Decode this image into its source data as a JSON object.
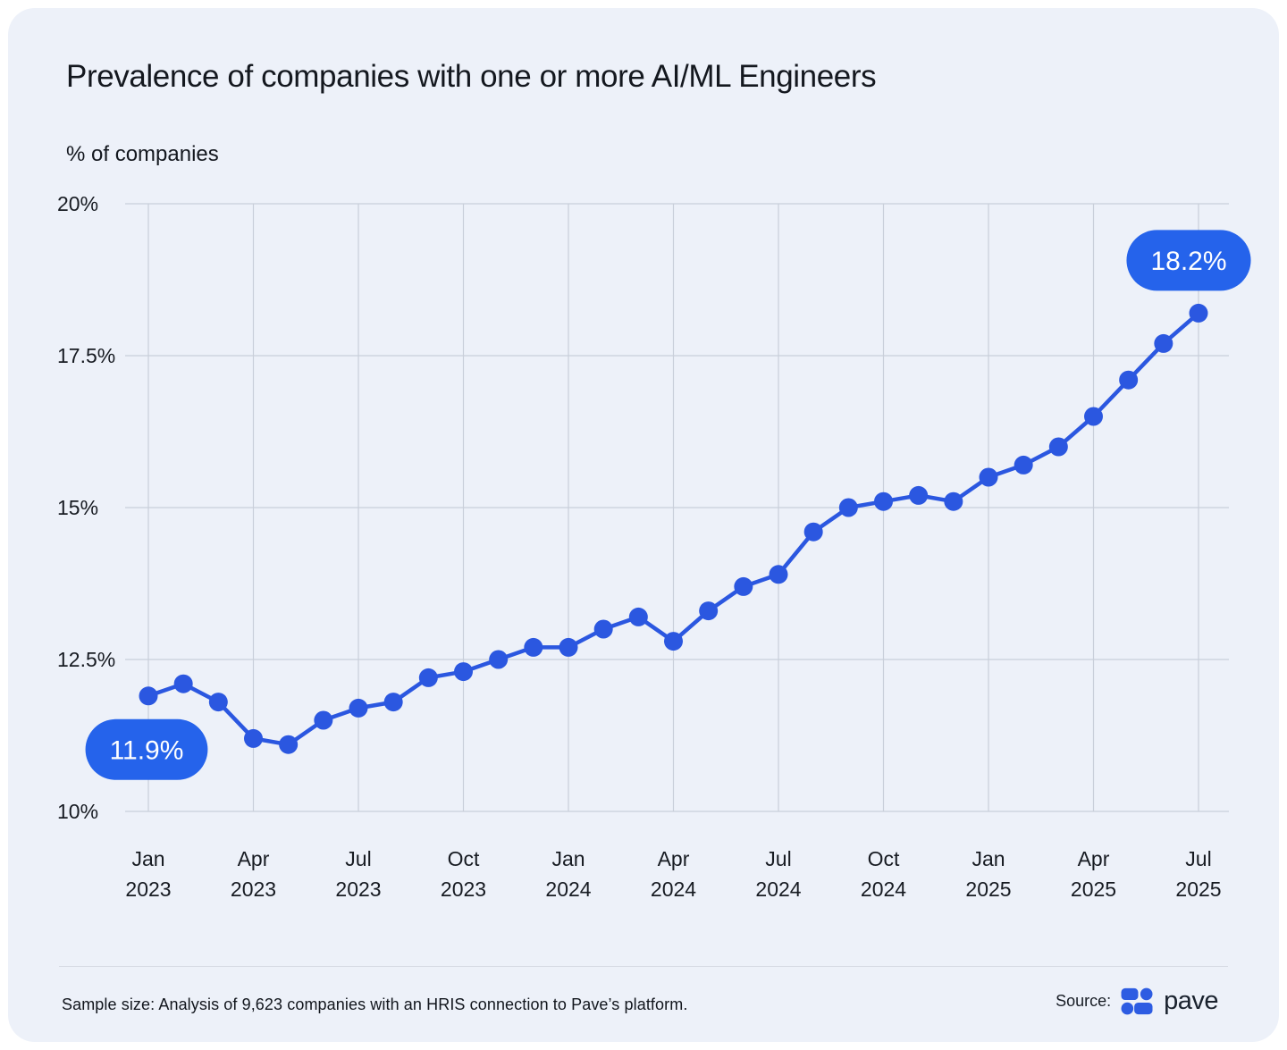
{
  "header": {
    "title": "Prevalence of companies with one or more AI/ML Engineers",
    "y_axis_title": "% of companies"
  },
  "footer": {
    "sample_note": "Sample size: Analysis of 9,623 companies with an HRIS connection to Pave’s platform.",
    "source_label": "Source:",
    "brand": "pave"
  },
  "chart_data": {
    "type": "line",
    "title": "Prevalence of companies with one or more AI/ML Engineers",
    "ylabel": "% of companies",
    "unit": "%",
    "ylim": [
      10,
      20
    ],
    "grid": "both",
    "legend": "none",
    "y_ticks": [
      {
        "value": 10,
        "label": "10%"
      },
      {
        "value": 12.5,
        "label": "12.5%"
      },
      {
        "value": 15,
        "label": "15%"
      },
      {
        "value": 17.5,
        "label": "17.5%"
      },
      {
        "value": 20,
        "label": "20%"
      }
    ],
    "x": [
      "Jan 2023",
      "Feb 2023",
      "Mar 2023",
      "Apr 2023",
      "May 2023",
      "Jun 2023",
      "Jul 2023",
      "Aug 2023",
      "Sep 2023",
      "Oct 2023",
      "Nov 2023",
      "Dec 2023",
      "Jan 2024",
      "Feb 2024",
      "Mar 2024",
      "Apr 2024",
      "May 2024",
      "Jun 2024",
      "Jul 2024",
      "Aug 2024",
      "Sep 2024",
      "Oct 2024",
      "Nov 2024",
      "Dec 2024",
      "Jan 2025",
      "Feb 2025",
      "Mar 2025",
      "Apr 2025",
      "May 2025",
      "Jun 2025",
      "Jul 2025"
    ],
    "values": [
      11.9,
      12.1,
      11.8,
      11.2,
      11.1,
      11.5,
      11.7,
      11.8,
      12.2,
      12.3,
      12.5,
      12.7,
      12.7,
      13.0,
      13.2,
      12.8,
      13.3,
      13.7,
      13.9,
      14.6,
      15.0,
      15.1,
      15.2,
      15.1,
      15.5,
      15.7,
      16.0,
      16.5,
      17.1,
      17.7,
      18.2
    ],
    "x_ticks": [
      {
        "index": 0,
        "month": "Jan",
        "year": "2023"
      },
      {
        "index": 3,
        "month": "Apr",
        "year": "2023"
      },
      {
        "index": 6,
        "month": "Jul",
        "year": "2023"
      },
      {
        "index": 9,
        "month": "Oct",
        "year": "2023"
      },
      {
        "index": 12,
        "month": "Jan",
        "year": "2024"
      },
      {
        "index": 15,
        "month": "Apr",
        "year": "2024"
      },
      {
        "index": 18,
        "month": "Jul",
        "year": "2024"
      },
      {
        "index": 21,
        "month": "Oct",
        "year": "2024"
      },
      {
        "index": 24,
        "month": "Jan",
        "year": "2025"
      },
      {
        "index": 27,
        "month": "Apr",
        "year": "2025"
      },
      {
        "index": 30,
        "month": "Jul",
        "year": "2025"
      }
    ],
    "annotations": [
      {
        "x": "Jan 2023",
        "index": 0,
        "label": "11.9%",
        "placement": "below"
      },
      {
        "x": "Jul 2025",
        "index": 30,
        "label": "18.2%",
        "placement": "above"
      }
    ],
    "colors": {
      "line": "#2b57e0",
      "point": "#2b57e0",
      "badge": "#2563eb",
      "badge_text": "#ffffff",
      "grid": "#c9cfda",
      "card_background": "#edf1f9",
      "text": "#14181f"
    }
  }
}
